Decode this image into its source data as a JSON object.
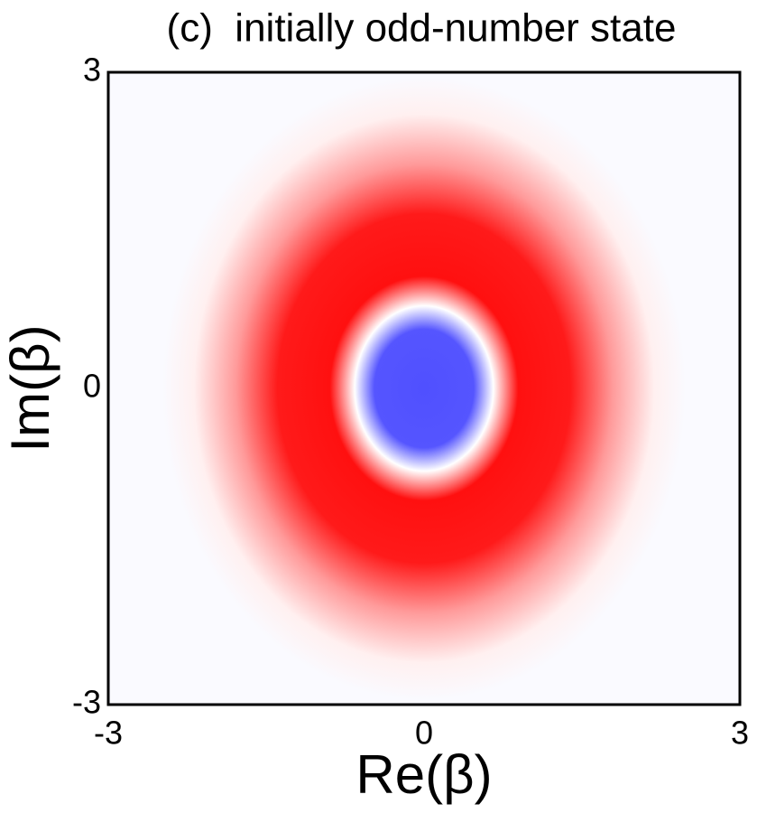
{
  "chart_data": {
    "type": "density",
    "title": "(c)  initially odd-number state",
    "x_label": "Re(β)",
    "y_label": "Im(β)",
    "xlim": [
      -3,
      3
    ],
    "ylim": [
      -3,
      3
    ],
    "xticks": [
      -3,
      0,
      3
    ],
    "yticks": [
      -3,
      0,
      3
    ]
  }
}
